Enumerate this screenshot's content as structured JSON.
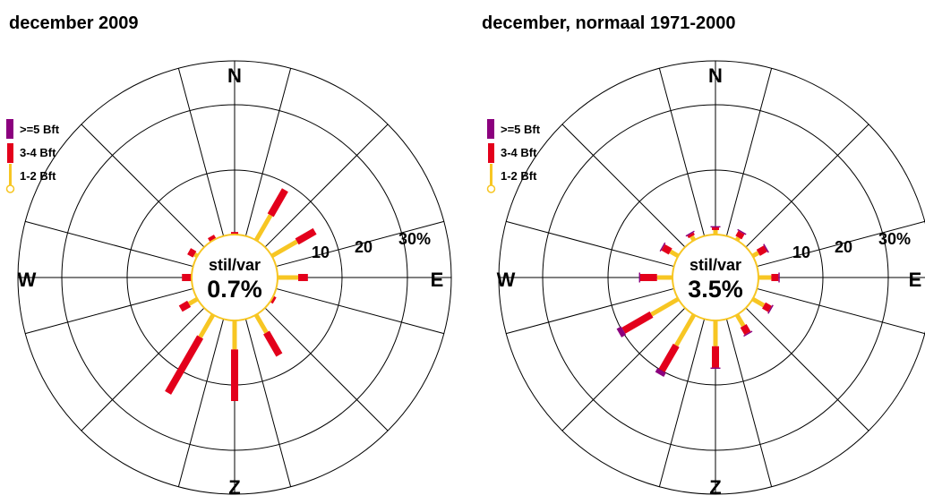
{
  "colors": {
    "bft_1_2": "#f7c623",
    "bft_3_4": "#e3001b",
    "bft_5_plus": "#8b007e",
    "grid": "#000000",
    "background": "#ffffff"
  },
  "chart_data": [
    {
      "type": "wind-rose",
      "title": "december 2009",
      "directions": [
        "N",
        "NNE",
        "ENE",
        "E",
        "ESE",
        "SSE",
        "Z",
        "SSW",
        "WSW",
        "W",
        "WNW",
        "NNW"
      ],
      "direction_angles_deg": [
        0,
        30,
        60,
        90,
        120,
        150,
        180,
        210,
        240,
        270,
        300,
        330
      ],
      "compass_labels": {
        "north": "N",
        "east": "E",
        "south": "Z",
        "west": "W"
      },
      "radial_ticks": [
        "10",
        "20",
        "30%"
      ],
      "rlim": [
        0,
        30
      ],
      "calm": {
        "label": "stil/var",
        "value": "0.7%"
      },
      "legend": [
        {
          "label": ">=5 Bft",
          "color_key": "bft_5_plus"
        },
        {
          "label": "3-4 Bft",
          "color_key": "bft_3_4"
        },
        {
          "label": "1-2 Bft",
          "color_key": "bft_1_2"
        }
      ],
      "series": [
        {
          "name": "1-2 Bft",
          "values": [
            0,
            4.5,
            4.5,
            3.2,
            0,
            3.2,
            4.5,
            4.0,
            1.5,
            0,
            0.5,
            0
          ]
        },
        {
          "name": "3-4 Bft",
          "values": [
            0.4,
            4.5,
            3.2,
            1.5,
            0.5,
            4.0,
            8.0,
            10.0,
            1.5,
            1.5,
            1.0,
            0.7
          ]
        },
        {
          "name": ">=5 Bft",
          "values": [
            0,
            0,
            0,
            0,
            0,
            0,
            0,
            0,
            0,
            0,
            0,
            0
          ]
        }
      ]
    },
    {
      "type": "wind-rose",
      "title": "december, normaal 1971-2000",
      "directions": [
        "N",
        "NNE",
        "ENE",
        "E",
        "ESE",
        "SSE",
        "Z",
        "SSW",
        "WSW",
        "W",
        "WNW",
        "NNW"
      ],
      "direction_angles_deg": [
        0,
        30,
        60,
        90,
        120,
        150,
        180,
        210,
        240,
        270,
        300,
        330
      ],
      "compass_labels": {
        "north": "N",
        "east": "E",
        "south": "Z",
        "west": "W"
      },
      "radial_ticks": [
        "10",
        "20",
        "30%"
      ],
      "rlim": [
        0,
        30
      ],
      "calm": {
        "label": "stil/var",
        "value": "3.5%"
      },
      "legend": [
        {
          "label": ">=5 Bft",
          "color_key": "bft_5_plus"
        },
        {
          "label": "3-4 Bft",
          "color_key": "bft_3_4"
        },
        {
          "label": "1-2 Bft",
          "color_key": "bft_1_2"
        }
      ],
      "series": [
        {
          "name": "1-2 Bft",
          "values": [
            0.7,
            0.5,
            1.0,
            2.0,
            2.0,
            2.0,
            4.0,
            5.5,
            4.8,
            2.4,
            1.4,
            0.7
          ]
        },
        {
          "name": "3-4 Bft",
          "values": [
            0.4,
            0.9,
            1.3,
            1.1,
            1.1,
            1.3,
            3.3,
            4.5,
            5.0,
            2.6,
            1.3,
            0.4
          ]
        },
        {
          "name": ">=5 Bft",
          "values": [
            0.2,
            0.2,
            0.2,
            0.2,
            0.2,
            0.2,
            0.2,
            0.7,
            0.8,
            0.2,
            0.2,
            0.2
          ]
        }
      ]
    }
  ]
}
